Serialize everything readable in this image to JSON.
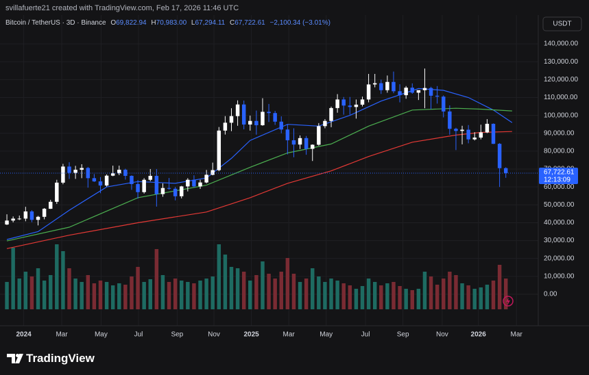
{
  "attribution": "svillafuerte21 created with TradingView.com, Feb 17, 2026 11:46 UTC",
  "brand": "TradingView",
  "chart_data": {
    "type": "candlestick",
    "title": "Bitcoin / TetherUS · 3D · Binance",
    "legend": [
      {
        "key": "O",
        "value": "69,822.94"
      },
      {
        "key": "H",
        "value": "70,983.00"
      },
      {
        "key": "L",
        "value": "67,294.11"
      },
      {
        "key": "C",
        "value": "67,722.61"
      }
    ],
    "change": "−2,100.34 (−3.01%)",
    "currency": "USDT",
    "last_price": {
      "value": 67722.61,
      "label": "67,722.61"
    },
    "countdown": "12:13:09",
    "up_color": "#ffffff",
    "down_color": "#2962ff",
    "volume_up_color": "#1e6b62",
    "volume_down_color": "#7a2b33",
    "grid": true,
    "xlim": [
      0,
      85.7
    ],
    "xticks": [
      {
        "value": 3.2,
        "label": "2024"
      },
      {
        "value": 9.3,
        "label": "Mar"
      },
      {
        "value": 15.6,
        "label": "May"
      },
      {
        "value": 21.6,
        "label": "Jul"
      },
      {
        "value": 27.8,
        "label": "Sep"
      },
      {
        "value": 33.7,
        "label": "Nov"
      },
      {
        "value": 39.7,
        "label": "2025"
      },
      {
        "value": 45.7,
        "label": "Mar"
      },
      {
        "value": 51.7,
        "label": "May"
      },
      {
        "value": 58.0,
        "label": "Jul"
      },
      {
        "value": 64.0,
        "label": "Sep"
      },
      {
        "value": 70.3,
        "label": "Nov"
      },
      {
        "value": 76.1,
        "label": "2026"
      },
      {
        "value": 82.2,
        "label": "Mar"
      }
    ],
    "ylim": [
      -17600,
      156100
    ],
    "yticks": [
      {
        "value": 0,
        "label": "0.00"
      },
      {
        "value": 10000,
        "label": "10,000.00"
      },
      {
        "value": 20000,
        "label": "20,000.00"
      },
      {
        "value": 30000,
        "label": "30,000.00"
      },
      {
        "value": 40000,
        "label": "40,000.00"
      },
      {
        "value": 50000,
        "label": "50,000.00"
      },
      {
        "value": 60000,
        "label": "60,000.00"
      },
      {
        "value": 70000,
        "label": "70,000.00"
      },
      {
        "value": 80000,
        "label": "80,000.00"
      },
      {
        "value": 90000,
        "label": "90,000.00"
      },
      {
        "value": 100000,
        "label": "100,000.00"
      },
      {
        "value": 110000,
        "label": "110,000.00"
      },
      {
        "value": 120000,
        "label": "120,000.00"
      },
      {
        "value": 130000,
        "label": "130,000.00"
      },
      {
        "value": 140000,
        "label": "140,000.00"
      }
    ],
    "ohlc": [
      [
        39000,
        44700,
        38700,
        41200
      ],
      [
        41200,
        43500,
        40200,
        42300
      ],
      [
        42300,
        44000,
        41500,
        42300
      ],
      [
        42300,
        48900,
        40800,
        46300
      ],
      [
        46300,
        47000,
        40300,
        41600
      ],
      [
        41600,
        43800,
        38500,
        43300
      ],
      [
        43300,
        48200,
        41900,
        47800
      ],
      [
        47800,
        52800,
        47700,
        51700
      ],
      [
        51700,
        64000,
        50500,
        62400
      ],
      [
        62400,
        72900,
        61500,
        71400
      ],
      [
        71400,
        73800,
        64500,
        67900
      ],
      [
        67900,
        71800,
        64500,
        69600
      ],
      [
        69600,
        72700,
        64900,
        70600
      ],
      [
        70600,
        71200,
        59600,
        64900
      ],
      [
        64900,
        67200,
        62800,
        63100
      ],
      [
        63100,
        65500,
        56500,
        60800
      ],
      [
        60800,
        67000,
        60200,
        66300
      ],
      [
        66300,
        71900,
        66000,
        67600
      ],
      [
        67600,
        71900,
        66600,
        69600
      ],
      [
        69600,
        70200,
        64100,
        66200
      ],
      [
        66200,
        66500,
        58400,
        61600
      ],
      [
        61600,
        63800,
        53500,
        57100
      ],
      [
        57100,
        64900,
        56300,
        64000
      ],
      [
        64000,
        70000,
        63200,
        66200
      ],
      [
        66200,
        70000,
        49000,
        56000
      ],
      [
        56000,
        62000,
        54500,
        59400
      ],
      [
        59400,
        65000,
        58400,
        59000
      ],
      [
        59000,
        60000,
        52500,
        54800
      ],
      [
        54800,
        60600,
        53600,
        60300
      ],
      [
        60300,
        64900,
        57500,
        64000
      ],
      [
        64000,
        66500,
        59800,
        60300
      ],
      [
        60300,
        64000,
        58900,
        62500
      ],
      [
        62500,
        69500,
        62000,
        66800
      ],
      [
        66800,
        73600,
        66500,
        69400
      ],
      [
        69400,
        93500,
        68800,
        91500
      ],
      [
        91500,
        99600,
        89300,
        95900
      ],
      [
        95900,
        104000,
        91200,
        99600
      ],
      [
        99600,
        108400,
        94200,
        106100
      ],
      [
        106100,
        108300,
        92200,
        94900
      ],
      [
        94900,
        99900,
        91500,
        96900
      ],
      [
        96900,
        102700,
        89200,
        94500
      ],
      [
        94500,
        109600,
        94200,
        102000
      ],
      [
        102000,
        106400,
        96300,
        101300
      ],
      [
        101300,
        102500,
        94700,
        96500
      ],
      [
        96500,
        99500,
        90000,
        92100
      ],
      [
        92100,
        95000,
        78200,
        86100
      ],
      [
        86100,
        92800,
        76600,
        83700
      ],
      [
        83700,
        88800,
        81200,
        87300
      ],
      [
        87300,
        88500,
        78000,
        81300
      ],
      [
        81300,
        83800,
        74500,
        83600
      ],
      [
        83600,
        95700,
        83100,
        94000
      ],
      [
        94000,
        97900,
        92800,
        96900
      ],
      [
        96900,
        104900,
        93400,
        104100
      ],
      [
        104100,
        111900,
        101500,
        108900
      ],
      [
        108900,
        110300,
        100400,
        105500
      ],
      [
        105500,
        110300,
        100400,
        104700
      ],
      [
        104700,
        108900,
        98200,
        106000
      ],
      [
        106000,
        110500,
        105000,
        108900
      ],
      [
        108900,
        123200,
        107300,
        117300
      ],
      [
        117300,
        123200,
        115700,
        118000
      ],
      [
        118000,
        120000,
        112000,
        114100
      ],
      [
        114100,
        122300,
        112700,
        118700
      ],
      [
        118700,
        124500,
        112400,
        113500
      ],
      [
        113500,
        117400,
        107300,
        111300
      ],
      [
        111300,
        116400,
        109300,
        115500
      ],
      [
        115500,
        117900,
        112100,
        112700
      ],
      [
        112700,
        114000,
        108600,
        114100
      ],
      [
        114100,
        126200,
        104000,
        115300
      ],
      [
        115300,
        116000,
        103500,
        111000
      ],
      [
        111000,
        116400,
        106600,
        110500
      ],
      [
        110500,
        111200,
        98900,
        102200
      ],
      [
        102200,
        105600,
        89200,
        92500
      ],
      [
        92500,
        93100,
        80600,
        91300
      ],
      [
        91300,
        94200,
        83800,
        92000
      ],
      [
        92000,
        94600,
        84400,
        86600
      ],
      [
        86600,
        90600,
        86000,
        87600
      ],
      [
        87600,
        94800,
        86600,
        90500
      ],
      [
        90500,
        97900,
        90100,
        95300
      ],
      [
        95300,
        95500,
        84000,
        84100
      ],
      [
        84100,
        84500,
        60000,
        70500
      ],
      [
        70500,
        71000,
        65100,
        67700
      ]
    ],
    "volume": [
      40,
      90,
      45,
      55,
      48,
      60,
      42,
      50,
      95,
      85,
      60,
      45,
      40,
      50,
      38,
      42,
      40,
      35,
      38,
      36,
      48,
      62,
      40,
      44,
      88,
      50,
      40,
      45,
      42,
      40,
      38,
      42,
      45,
      48,
      95,
      80,
      62,
      60,
      55,
      42,
      50,
      70,
      52,
      45,
      55,
      75,
      52,
      40,
      45,
      60,
      48,
      40,
      45,
      42,
      38,
      35,
      30,
      34,
      45,
      40,
      35,
      38,
      40,
      34,
      30,
      28,
      30,
      55,
      48,
      36,
      45,
      55,
      50,
      38,
      35,
      30,
      32,
      36,
      42,
      65,
      45
    ],
    "moving_averages": [
      {
        "color": "#2962ff",
        "x": [
          0,
          5,
          10,
          16,
          21,
          27,
          32,
          36,
          39,
          45,
          50,
          55,
          60,
          66,
          70,
          74,
          78,
          81
        ],
        "values": [
          30600,
          35000,
          47000,
          60000,
          63000,
          62000,
          65000,
          76000,
          86000,
          95000,
          94000,
          100000,
          108000,
          115000,
          114000,
          110000,
          103000,
          96000
        ]
      },
      {
        "color": "#4caf50",
        "x": [
          0,
          10,
          21,
          32,
          39,
          45,
          52,
          58,
          65,
          72,
          76,
          81
        ],
        "values": [
          29800,
          37500,
          54000,
          61000,
          71000,
          79000,
          84000,
          94000,
          103000,
          104000,
          103500,
          102500
        ]
      },
      {
        "color": "#e53935",
        "x": [
          0,
          10,
          21,
          32,
          39,
          45,
          52,
          58,
          65,
          72,
          76,
          81
        ],
        "values": [
          25500,
          33000,
          40000,
          46000,
          54000,
          62000,
          69000,
          77000,
          85000,
          89000,
          90500,
          91000
        ]
      }
    ]
  }
}
